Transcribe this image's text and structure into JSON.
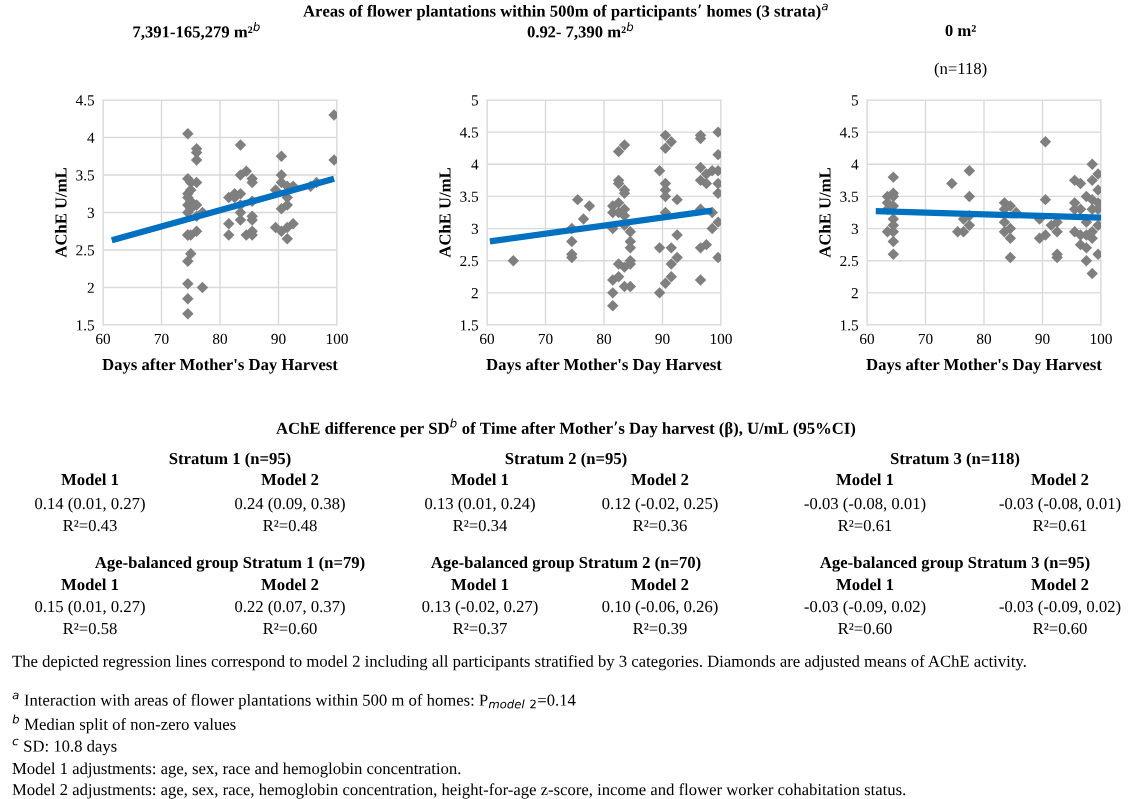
{
  "chart_data": [
    {
      "type": "scatter",
      "title": "7,391-165,279 m²$^{b}$",
      "annotations": [
        "Areas of flower plantations within 500m of participants’ homes (3 strata)$^{a}$"
      ],
      "xlabel": "Days after Mother's Day Harvest",
      "ylabel": "AChE U/mL",
      "xlim": [
        60,
        100
      ],
      "xticks": [
        60,
        70,
        80,
        90,
        100
      ],
      "ylim": [
        1.5,
        4.5
      ],
      "yticks": [
        1.5,
        2,
        2.5,
        3,
        3.5,
        4,
        4.5
      ],
      "grid": true,
      "marker": "diamond",
      "series": [
        {
          "type": "scatter",
          "color": "#7f7f7f",
          "x": [
            74.5,
            74.5,
            74.5,
            74.5,
            74.5,
            74.5,
            74.5,
            74.5,
            74.5,
            74.5,
            74.5,
            74.5,
            75,
            75,
            75,
            75,
            75,
            75,
            76,
            76,
            76,
            76,
            76,
            76,
            76,
            77,
            77,
            81.5,
            81.5,
            81.5,
            82.5,
            82.5,
            83.5,
            83.5,
            83.5,
            83.5,
            83.5,
            83.5,
            84.5,
            84.5,
            85.5,
            85.5,
            85.5,
            85.5,
            85.5,
            85.5,
            85.5,
            89.5,
            89.5,
            90.5,
            90.5,
            90.5,
            90.5,
            90.5,
            91.5,
            91.5,
            91.5,
            91.5,
            91.5,
            92.5,
            92.5,
            95.5,
            96.5,
            99.5,
            99.5
          ],
          "values": [
            4.05,
            3.45,
            3.25,
            3.2,
            3.1,
            3.0,
            2.7,
            2.7,
            2.35,
            2.05,
            1.85,
            1.65,
            3.4,
            3.3,
            3.15,
            3.05,
            2.7,
            2.45,
            3.85,
            3.8,
            3.7,
            3.4,
            3.1,
            2.75,
            2.95,
            2.0,
            3.0,
            3.2,
            2.85,
            2.7,
            3.25,
            3.2,
            3.9,
            3.5,
            3.25,
            3.0,
            2.9,
            3.1,
            3.55,
            2.7,
            3.45,
            3.4,
            3.15,
            2.95,
            2.9,
            2.75,
            2.7,
            3.3,
            2.8,
            3.75,
            3.5,
            3.4,
            3.05,
            2.75,
            3.35,
            3.2,
            3.1,
            2.8,
            2.65,
            3.35,
            2.85,
            3.35,
            3.4,
            4.3,
            3.7
          ]
        },
        {
          "type": "line",
          "color": "#0070c0",
          "marker": "none",
          "x": [
            61.5,
            99.5
          ],
          "values": [
            2.63,
            3.45
          ]
        }
      ]
    },
    {
      "type": "scatter",
      "title": "0.92- 7,390 m²$^{b}$",
      "xlabel": "Days after Mother's Day Harvest",
      "ylabel": "AChE U/mL",
      "xlim": [
        60,
        100
      ],
      "xticks": [
        60,
        70,
        80,
        90,
        100
      ],
      "ylim": [
        1.5,
        5
      ],
      "yticks": [
        1.5,
        2,
        2.5,
        3,
        3.5,
        4,
        4.5,
        5
      ],
      "grid": true,
      "marker": "diamond",
      "series": [
        {
          "type": "scatter",
          "color": "#7f7f7f",
          "x": [
            64.5,
            74.5,
            74.5,
            74.5,
            74.5,
            75.5,
            76.5,
            77.5,
            81.5,
            81.5,
            81.5,
            81.5,
            81.5,
            81.5,
            82.5,
            82.5,
            82.5,
            82.5,
            82.5,
            82.5,
            82.5,
            83.5,
            83.5,
            83.5,
            83.5,
            83.5,
            83.5,
            83.5,
            83.5,
            84.5,
            84.5,
            84.5,
            84.5,
            84.5,
            84.5,
            89.5,
            89.5,
            89.5,
            90.5,
            90.5,
            90.5,
            90.5,
            90.5,
            90.5,
            90.5,
            91.5,
            91.5,
            91.5,
            91.5,
            92.5,
            92.5,
            92.5,
            96.5,
            96.5,
            96.5,
            96.5,
            96.5,
            96.5,
            96.5,
            97.5,
            97.5,
            97.5,
            98.5,
            98.5,
            98.5,
            99.5,
            99.5,
            99.5,
            99.5,
            99.5,
            99.5,
            99.5
          ],
          "values": [
            2.5,
            3.0,
            2.8,
            2.55,
            2.6,
            3.45,
            3.15,
            3.35,
            3.35,
            3.25,
            3.0,
            2.2,
            2.0,
            1.8,
            4.2,
            3.75,
            3.7,
            3.4,
            3.25,
            2.45,
            2.25,
            4.3,
            3.6,
            3.55,
            3.3,
            3.2,
            3.05,
            2.4,
            2.1,
            2.95,
            2.8,
            2.7,
            2.5,
            2.45,
            2.1,
            3.9,
            2.7,
            2.0,
            4.45,
            4.25,
            3.7,
            3.6,
            3.5,
            3.25,
            2.15,
            4.35,
            2.7,
            2.45,
            2.25,
            3.45,
            2.9,
            2.55,
            4.45,
            4.4,
            3.95,
            3.75,
            3.3,
            2.7,
            2.2,
            3.85,
            3.7,
            2.75,
            3.9,
            3.25,
            3.0,
            4.5,
            4.15,
            3.9,
            3.7,
            3.55,
            3.1,
            2.55
          ]
        },
        {
          "type": "line",
          "color": "#0070c0",
          "marker": "none",
          "x": [
            60.5,
            98.5
          ],
          "values": [
            2.8,
            3.28
          ]
        }
      ]
    },
    {
      "type": "scatter",
      "title": "0 m²",
      "subtitle": "(n=118)",
      "xlabel": "Days after Mother's Day Harvest",
      "ylabel": "AChE U/mL",
      "xlim": [
        60,
        100
      ],
      "xticks": [
        60,
        70,
        80,
        90,
        100
      ],
      "ylim": [
        1.5,
        5
      ],
      "yticks": [
        1.5,
        2,
        2.5,
        3,
        3.5,
        4,
        4.5,
        5
      ],
      "grid": true,
      "marker": "diamond",
      "series": [
        {
          "type": "scatter",
          "color": "#7f7f7f",
          "x": [
            63.5,
            63.5,
            63.5,
            63.5,
            64.5,
            64.5,
            64.5,
            64.5,
            64.5,
            64.5,
            64.5,
            64.5,
            64.5,
            74.5,
            75.5,
            76.5,
            76.5,
            77.5,
            77.5,
            77.5,
            77.5,
            83.5,
            83.5,
            83.5,
            83.5,
            84.5,
            84.5,
            84.5,
            84.5,
            85.5,
            89.5,
            89.5,
            90.5,
            90.5,
            90.5,
            91.5,
            92.5,
            92.5,
            92.5,
            92.5,
            95.5,
            95.5,
            95.5,
            95.5,
            96.5,
            96.5,
            96.5,
            96.5,
            97.5,
            97.5,
            97.5,
            97.5,
            97.5,
            98.5,
            98.5,
            98.5,
            98.5,
            98.5,
            98.5,
            98.5,
            99.5,
            99.5,
            99.5,
            99.5,
            99.5,
            99.5
          ],
          "values": [
            3.5,
            3.4,
            3.3,
            2.95,
            3.8,
            3.55,
            3.5,
            3.35,
            3.15,
            3.05,
            2.95,
            2.8,
            2.6,
            3.7,
            2.95,
            3.15,
            2.95,
            3.9,
            3.5,
            3.2,
            3.05,
            3.4,
            3.3,
            3.1,
            2.95,
            3.35,
            3.0,
            2.85,
            2.55,
            3.25,
            3.15,
            2.85,
            4.35,
            3.45,
            2.9,
            3.05,
            3.1,
            2.95,
            2.6,
            2.55,
            3.75,
            3.4,
            3.3,
            2.95,
            3.7,
            3.3,
            2.9,
            2.75,
            3.5,
            3.1,
            2.9,
            2.7,
            2.5,
            4.0,
            3.75,
            3.45,
            3.3,
            2.95,
            2.85,
            2.3,
            3.85,
            3.6,
            3.4,
            3.3,
            3.05,
            2.6
          ]
        },
        {
          "type": "line",
          "color": "#0070c0",
          "marker": "none",
          "x": [
            61.5,
            100
          ],
          "values": [
            3.27,
            3.17
          ]
        }
      ]
    },
    {
      "type": "other",
      "title": "AChE difference per SD$^{b}$ of Time after Mother’s Day harvest (β), U/mL (95%CI)",
      "annotations": [
        "Stratum 1 (n=95)",
        "Model 1",
        "Model 2",
        "0.14 (0.01, 0.27)",
        "0.24 (0.09, 0.38)",
        "R²=0.43",
        "R²=0.48",
        "Stratum 2 (n=95)",
        "Model 1",
        "Model 2",
        "0.13 (0.01, 0.24)",
        "0.12 (-0.02, 0.25)",
        "R²=0.34",
        "R²=0.36",
        "Stratum 3 (n=118)",
        "Model 1",
        "Model 2",
        "-0.03 (-0.08, 0.01)",
        "-0.03 (-0.08, 0.01)",
        "R²=0.61",
        "R²=0.61",
        "Age-balanced group Stratum 1 (n=79)",
        "Model 1",
        "Model 2",
        "0.15 (0.01, 0.27)",
        "0.22 (0.07, 0.37)",
        "R²=0.58",
        "R²=0.60",
        "Age-balanced group Stratum 2 (n=70)",
        "Model 1",
        "Model 2",
        "0.13 (-0.02, 0.27)",
        "0.10 (-0.06, 0.26)",
        "R²=0.37",
        "R²=0.39",
        "Age-balanced group Stratum 3 (n=95)",
        "Model 1",
        "Model 2",
        "-0.03 (-0.09, 0.02)",
        "-0.03 (-0.09, 0.02)",
        "R²=0.60",
        "R²=0.60",
        "The depicted regression lines correspond to model 2 including all participants stratified by 3 categories. Diamonds are adjusted means of AChE activity.",
        "$^{a}$ Interaction with areas of flower plantations within 500 m of homes: P$_{model}$ $_{2}$=0.14",
        "$^{b}$ Median split of non-zero values",
        "$^{c}$ SD: 10.8 days",
        "Model 1 adjustments: age, sex, race and hemoglobin concentration.",
        "Model 2 adjustments: age, sex, race, hemoglobin concentration, height-for-age z-score, income and flower worker cohabitation status."
      ]
    }
  ]
}
